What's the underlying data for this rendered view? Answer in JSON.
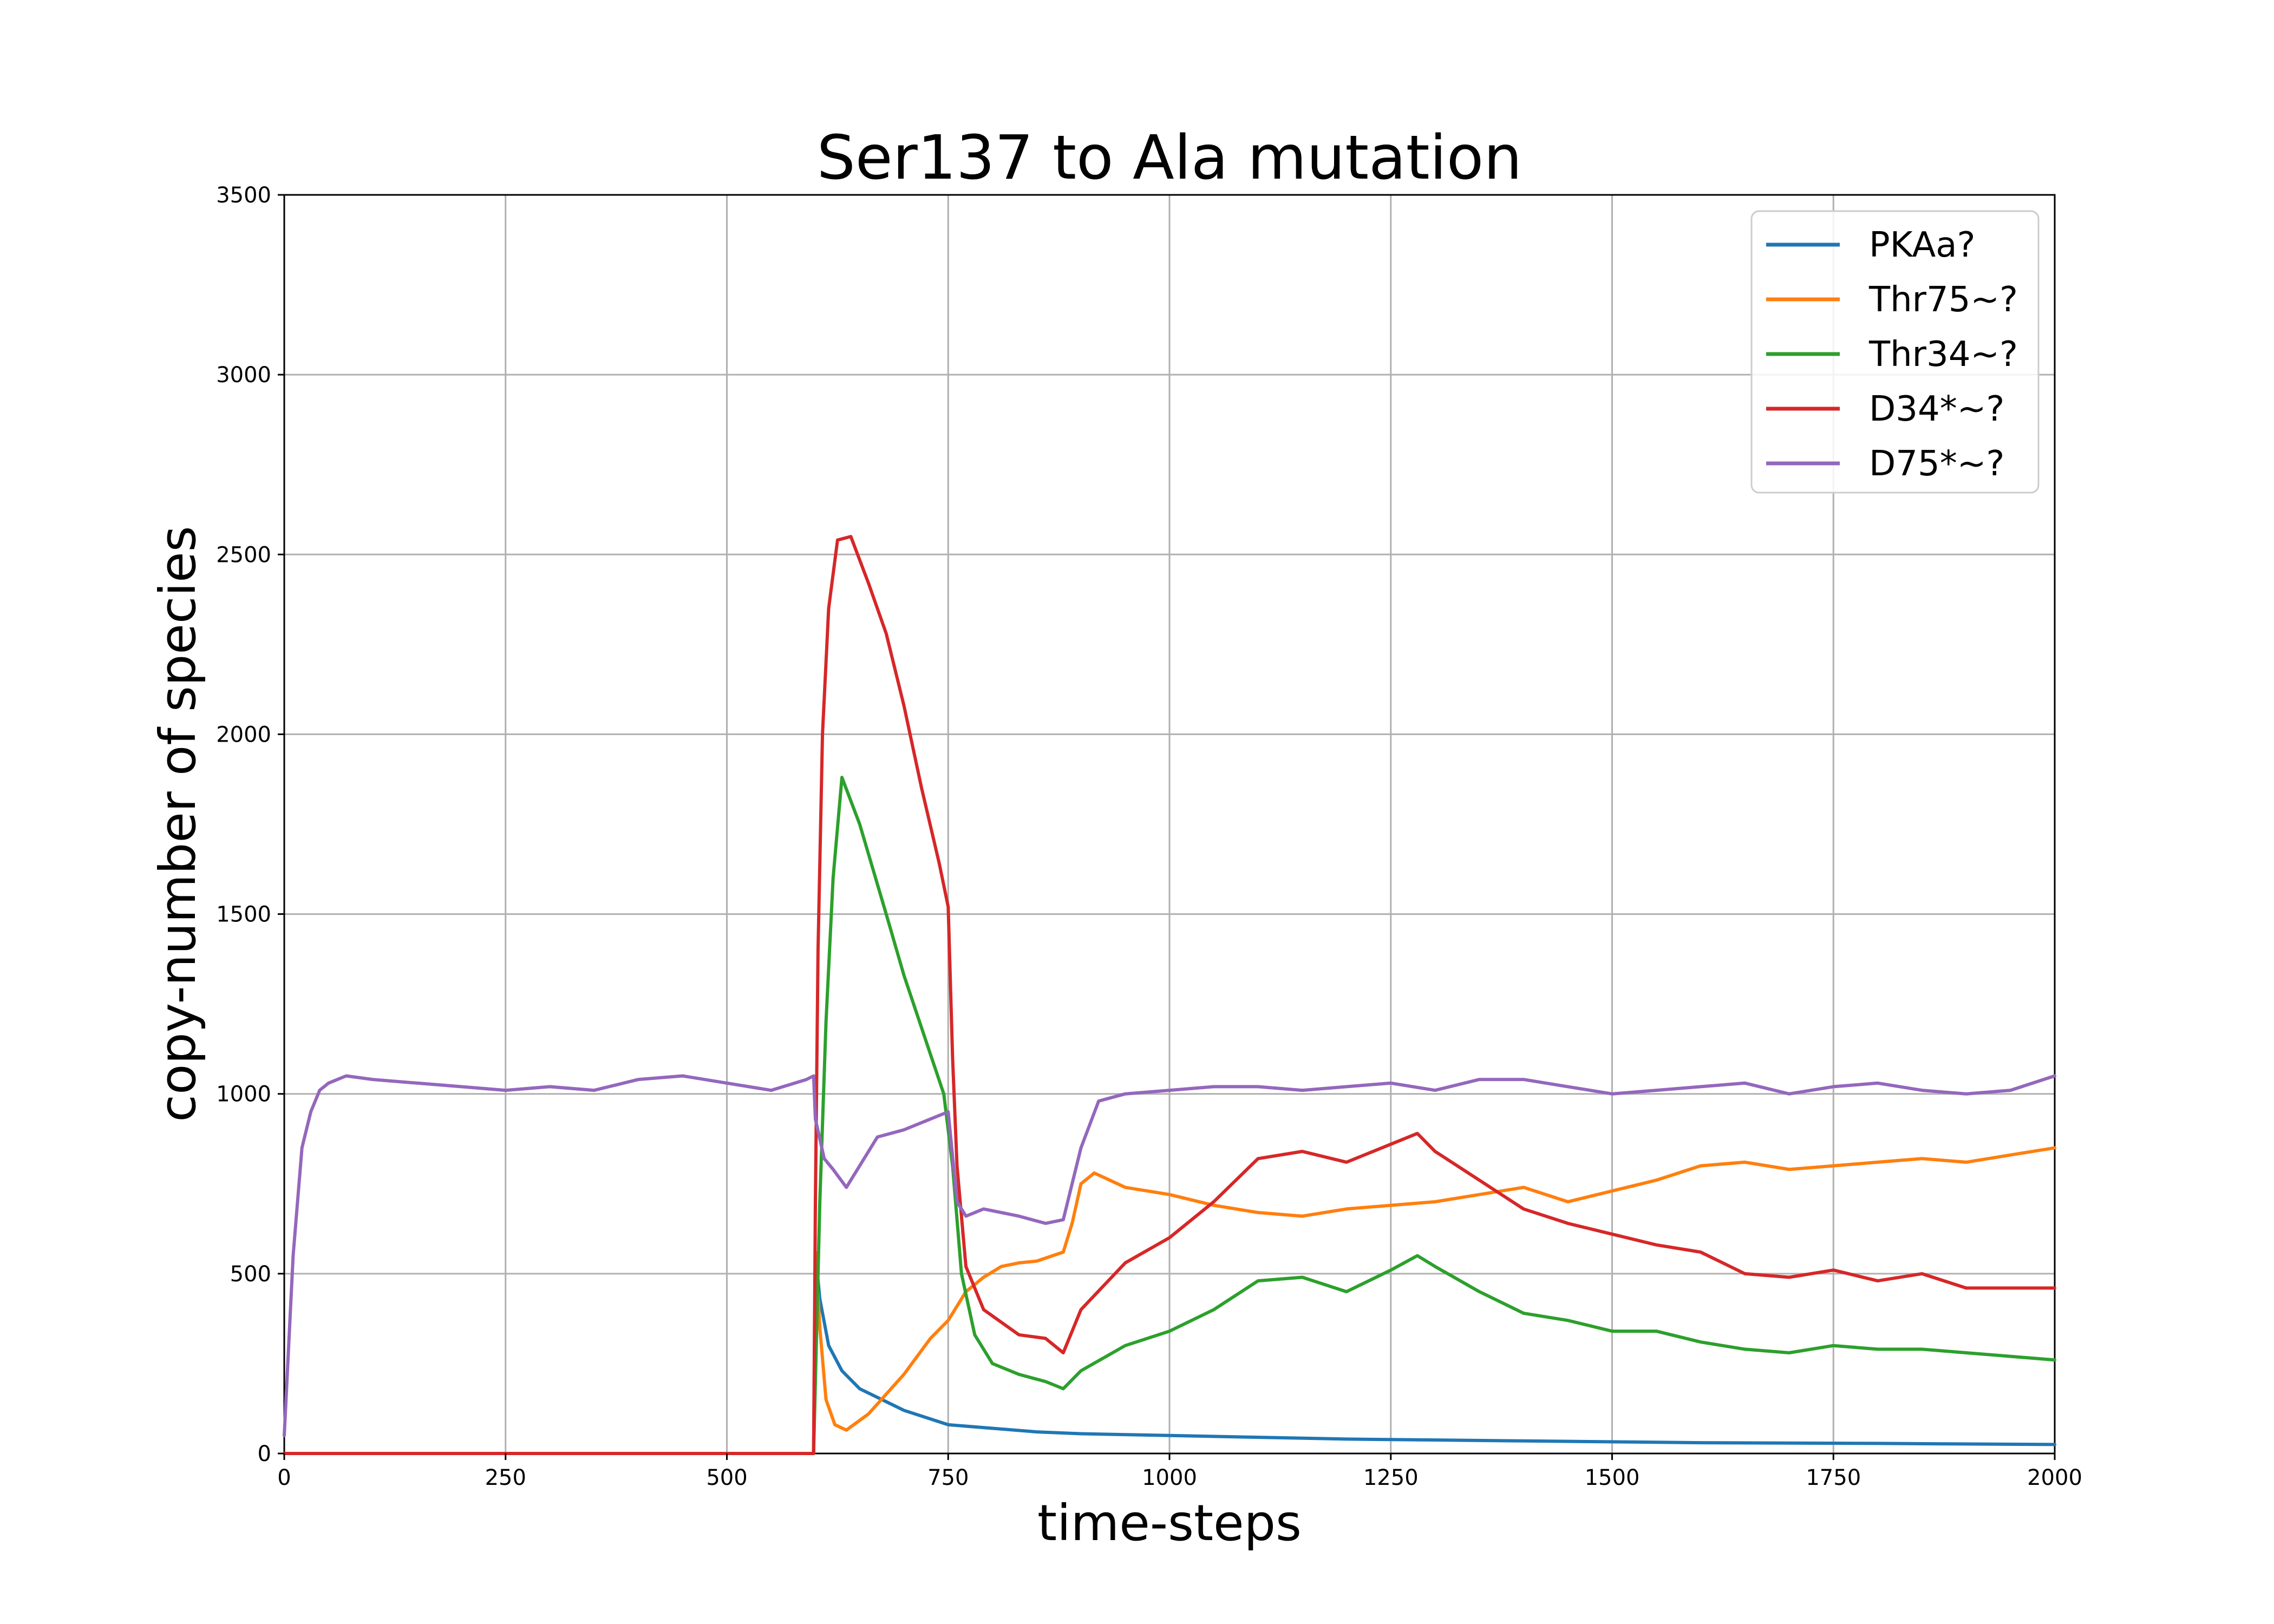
{
  "chart_data": {
    "type": "line",
    "title": "Ser137 to Ala mutation",
    "xlabel": "time-steps",
    "ylabel": "copy-number of species",
    "xlim": [
      0,
      2000
    ],
    "ylim": [
      0,
      3500
    ],
    "xticks": [
      0,
      250,
      500,
      750,
      1000,
      1250,
      1500,
      1750,
      2000
    ],
    "yticks": [
      0,
      500,
      1000,
      1500,
      2000,
      2500,
      3000,
      3500
    ],
    "grid": true,
    "legend_position": "top-right",
    "series": [
      {
        "name": "PKAa?",
        "color": "#1f77b4",
        "x": [
          0,
          598,
          600,
          605,
          615,
          630,
          650,
          700,
          750,
          800,
          850,
          900,
          1000,
          1200,
          1400,
          1600,
          1800,
          2000
        ],
        "y": [
          0,
          0,
          560,
          430,
          300,
          230,
          180,
          120,
          80,
          70,
          60,
          55,
          50,
          40,
          35,
          30,
          28,
          25
        ]
      },
      {
        "name": "Thr75~?",
        "color": "#ff7f0e",
        "x": [
          0,
          598,
          600,
          605,
          612,
          622,
          635,
          660,
          700,
          730,
          750,
          770,
          790,
          810,
          830,
          850,
          880,
          890,
          900,
          915,
          950,
          1000,
          1050,
          1100,
          1150,
          1200,
          1250,
          1300,
          1350,
          1400,
          1450,
          1500,
          1550,
          1600,
          1650,
          1700,
          1750,
          1800,
          1850,
          1900,
          1950,
          2000
        ],
        "y": [
          0,
          0,
          560,
          350,
          150,
          80,
          65,
          110,
          220,
          320,
          370,
          450,
          490,
          520,
          530,
          535,
          560,
          640,
          750,
          780,
          740,
          720,
          690,
          670,
          660,
          680,
          690,
          700,
          720,
          740,
          700,
          730,
          760,
          800,
          810,
          790,
          800,
          810,
          820,
          810,
          830,
          850
        ]
      },
      {
        "name": "Thr34~?",
        "color": "#2ca02c",
        "x": [
          0,
          598,
          600,
          605,
          612,
          620,
          630,
          650,
          680,
          700,
          730,
          745,
          755,
          765,
          780,
          800,
          830,
          860,
          880,
          900,
          950,
          1000,
          1050,
          1100,
          1150,
          1200,
          1250,
          1280,
          1300,
          1350,
          1400,
          1450,
          1500,
          1550,
          1600,
          1650,
          1700,
          1750,
          1800,
          1850,
          1900,
          1950,
          2000
        ],
        "y": [
          0,
          0,
          200,
          700,
          1200,
          1600,
          1880,
          1750,
          1500,
          1330,
          1110,
          1000,
          800,
          500,
          330,
          250,
          220,
          200,
          180,
          230,
          300,
          340,
          400,
          480,
          490,
          450,
          510,
          550,
          520,
          450,
          390,
          370,
          340,
          340,
          310,
          290,
          280,
          300,
          290,
          290,
          280,
          270,
          260
        ]
      },
      {
        "name": "D34*~?",
        "color": "#d62728",
        "x": [
          0,
          598,
          600,
          603,
          608,
          615,
          625,
          640,
          660,
          680,
          700,
          720,
          740,
          750,
          755,
          760,
          770,
          790,
          830,
          860,
          880,
          900,
          950,
          1000,
          1050,
          1100,
          1150,
          1200,
          1250,
          1280,
          1300,
          1350,
          1400,
          1450,
          1500,
          1550,
          1600,
          1650,
          1700,
          1750,
          1800,
          1850,
          1900,
          1950,
          2000
        ],
        "y": [
          0,
          0,
          700,
          1400,
          2000,
          2350,
          2540,
          2550,
          2420,
          2280,
          2080,
          1850,
          1640,
          1520,
          1100,
          800,
          520,
          400,
          330,
          320,
          280,
          400,
          530,
          600,
          700,
          820,
          840,
          810,
          860,
          890,
          840,
          760,
          680,
          640,
          610,
          580,
          560,
          500,
          490,
          510,
          480,
          500,
          460,
          460,
          460
        ]
      },
      {
        "name": "D75*~?",
        "color": "#9467bd",
        "x": [
          0,
          5,
          10,
          20,
          30,
          40,
          50,
          70,
          100,
          150,
          200,
          250,
          300,
          350,
          400,
          450,
          500,
          550,
          590,
          598,
          600,
          610,
          620,
          635,
          650,
          670,
          700,
          730,
          750,
          760,
          770,
          790,
          830,
          860,
          880,
          900,
          920,
          950,
          1000,
          1050,
          1100,
          1150,
          1200,
          1250,
          1300,
          1350,
          1400,
          1450,
          1500,
          1550,
          1600,
          1650,
          1700,
          1750,
          1800,
          1850,
          1900,
          1950,
          2000
        ],
        "y": [
          50,
          300,
          550,
          850,
          950,
          1010,
          1030,
          1050,
          1040,
          1030,
          1020,
          1010,
          1020,
          1010,
          1040,
          1050,
          1030,
          1010,
          1040,
          1050,
          930,
          820,
          790,
          740,
          800,
          880,
          900,
          930,
          950,
          700,
          660,
          680,
          660,
          640,
          650,
          850,
          980,
          1000,
          1010,
          1020,
          1020,
          1010,
          1020,
          1030,
          1010,
          1040,
          1040,
          1020,
          1000,
          1010,
          1020,
          1030,
          1000,
          1020,
          1030,
          1010,
          1000,
          1010,
          1050
        ]
      }
    ]
  }
}
